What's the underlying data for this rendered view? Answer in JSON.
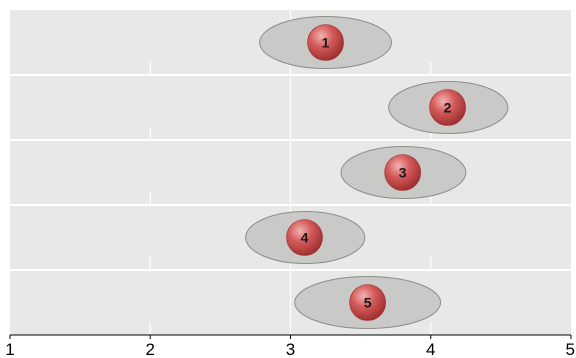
{
  "colors": {
    "panel_background": "#e8e8e6",
    "band_separator": "#ffffff",
    "gridline": "#ffffff",
    "ellipse_fill": "#c9c9c7",
    "ellipse_stroke": "#8c8c8a",
    "marker_fill": "#d45a5a",
    "marker_highlight": "#f2b3b3",
    "marker_shadow": "#9e2f2f",
    "axis": "#000000"
  },
  "chart_data": {
    "type": "scatter",
    "title": "",
    "xlabel": "",
    "ylabel": "",
    "xlim": [
      1,
      5
    ],
    "x_ticks": [
      "1",
      "2",
      "3",
      "4",
      "5"
    ],
    "grid": true,
    "legend": "none",
    "points": [
      {
        "label": "1",
        "x": 3.25,
        "x_low": 2.78,
        "x_high": 3.72
      },
      {
        "label": "2",
        "x": 4.12,
        "x_low": 3.7,
        "x_high": 4.55
      },
      {
        "label": "3",
        "x": 3.8,
        "x_low": 3.36,
        "x_high": 4.25
      },
      {
        "label": "4",
        "x": 3.1,
        "x_low": 2.68,
        "x_high": 3.53
      },
      {
        "label": "5",
        "x": 3.55,
        "x_low": 3.03,
        "x_high": 4.07
      }
    ]
  }
}
